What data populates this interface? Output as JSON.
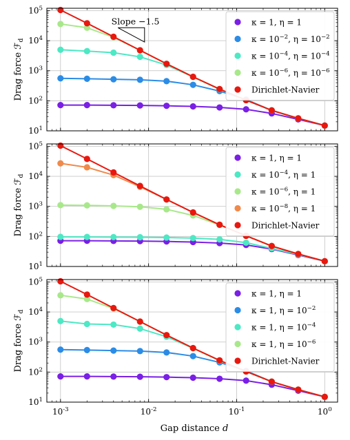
{
  "figure": {
    "xlabel": "Gap distance d",
    "ylabel": "Drag force ℱ_d"
  },
  "chart_data": [
    {
      "type": "line",
      "xscale": "log",
      "yscale": "log",
      "xlim": [
        0.0007,
        1.4
      ],
      "ylim": [
        10,
        120000
      ],
      "grid": true,
      "legend_position": "top-right",
      "xticks": [
        "10^-3",
        "10^-2",
        "10^-1",
        "10^0"
      ],
      "yticks": [
        "10^1",
        "10^2",
        "10^3",
        "10^4",
        "10^5"
      ],
      "annotation": {
        "text": "Slope −1.5",
        "triangle": {
          "x_left": 0.0045,
          "x_right": 0.009,
          "y_top": 27000,
          "y_bottom": 9000
        }
      },
      "x": [
        0.001,
        0.002,
        0.004,
        0.008,
        0.016,
        0.032,
        0.064,
        0.128,
        0.25,
        0.5,
        1
      ],
      "series": [
        {
          "name": "κ = 1, η = 1",
          "color": "#7a1fe6",
          "values": [
            72,
            72,
            71,
            70,
            68,
            65,
            60,
            52,
            38,
            24,
            15
          ]
        },
        {
          "name": "κ = 10^−2, η = 10^−2",
          "color": "#2b8ce6",
          "values": [
            560,
            540,
            520,
            500,
            450,
            340,
            210,
            110,
            48,
            26,
            15
          ]
        },
        {
          "name": "κ = 10^−4, η = 10^−4",
          "color": "#4de8c4",
          "values": [
            5000,
            4500,
            4000,
            2900,
            1550,
            620,
            245,
            105,
            48,
            26,
            15
          ]
        },
        {
          "name": "κ = 10^−6, η = 10^−6",
          "color": "#a8e88a",
          "values": [
            36000,
            27000,
            13000,
            4800,
            1700,
            620,
            240,
            105,
            48,
            26,
            15
          ]
        },
        {
          "name": "Dirichlet-Navier",
          "color": "#e8180f",
          "values": [
            105000,
            38000,
            13500,
            4800,
            1700,
            630,
            245,
            105,
            48,
            26,
            15
          ]
        }
      ]
    },
    {
      "type": "line",
      "xscale": "log",
      "yscale": "log",
      "xlim": [
        0.0007,
        1.4
      ],
      "ylim": [
        10,
        120000
      ],
      "grid": true,
      "legend_position": "top-right",
      "xticks": [
        "10^-3",
        "10^-2",
        "10^-1",
        "10^0"
      ],
      "yticks": [
        "10^1",
        "10^2",
        "10^3",
        "10^4",
        "10^5"
      ],
      "x": [
        0.001,
        0.002,
        0.004,
        0.008,
        0.016,
        0.032,
        0.064,
        0.128,
        0.25,
        0.5,
        1
      ],
      "series": [
        {
          "name": "κ = 1, η = 1",
          "color": "#7a1fe6",
          "values": [
            72,
            72,
            71,
            70,
            68,
            65,
            60,
            52,
            38,
            24,
            15
          ]
        },
        {
          "name": "κ = 10^−4, η = 1",
          "color": "#4de8c4",
          "values": [
            97,
            96,
            95,
            94,
            92,
            88,
            80,
            62,
            40,
            25,
            15
          ]
        },
        {
          "name": "κ = 10^−6, η = 1",
          "color": "#a8e88a",
          "values": [
            1100,
            1080,
            1040,
            970,
            800,
            500,
            240,
            105,
            48,
            26,
            15
          ]
        },
        {
          "name": "κ = 10^−8, η = 1",
          "color": "#f08a4b",
          "values": [
            27000,
            20000,
            11000,
            4500,
            1700,
            630,
            245,
            105,
            48,
            26,
            15
          ]
        },
        {
          "name": "Dirichlet-Navier",
          "color": "#e8180f",
          "values": [
            105000,
            38000,
            13500,
            4800,
            1700,
            630,
            245,
            105,
            48,
            26,
            15
          ]
        }
      ]
    },
    {
      "type": "line",
      "xscale": "log",
      "yscale": "log",
      "xlim": [
        0.0007,
        1.4
      ],
      "ylim": [
        10,
        120000
      ],
      "grid": true,
      "legend_position": "top-right",
      "xticks": [
        "10^-3",
        "10^-2",
        "10^-1",
        "10^0"
      ],
      "yticks": [
        "10^1",
        "10^2",
        "10^3",
        "10^4",
        "10^5"
      ],
      "x": [
        0.001,
        0.002,
        0.004,
        0.008,
        0.016,
        0.032,
        0.064,
        0.128,
        0.25,
        0.5,
        1
      ],
      "series": [
        {
          "name": "κ = 1, η = 1",
          "color": "#7a1fe6",
          "values": [
            72,
            72,
            71,
            70,
            68,
            65,
            60,
            52,
            38,
            24,
            15
          ]
        },
        {
          "name": "κ = 1, η = 10^−2",
          "color": "#2b8ce6",
          "values": [
            560,
            540,
            520,
            500,
            450,
            340,
            210,
            110,
            48,
            26,
            15
          ]
        },
        {
          "name": "κ = 1, η = 10^−4",
          "color": "#4de8c4",
          "values": [
            5000,
            4000,
            3800,
            2800,
            1500,
            620,
            245,
            105,
            48,
            26,
            15
          ]
        },
        {
          "name": "κ = 1, η = 10^−6",
          "color": "#a8e88a",
          "values": [
            36000,
            27000,
            13000,
            4800,
            1700,
            620,
            240,
            105,
            48,
            26,
            15
          ]
        },
        {
          "name": "Dirichlet-Navier",
          "color": "#e8180f",
          "values": [
            105000,
            38000,
            13500,
            4800,
            1700,
            630,
            245,
            105,
            48,
            26,
            15
          ]
        }
      ]
    }
  ]
}
